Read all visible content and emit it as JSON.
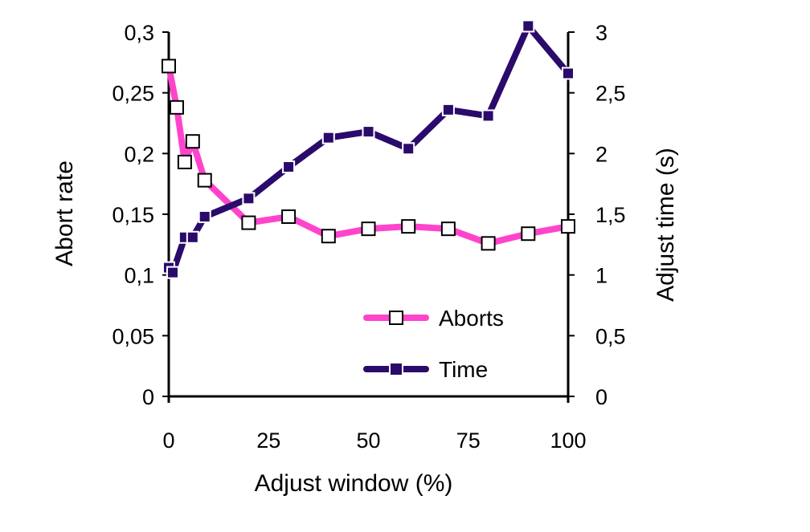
{
  "chart_data": {
    "type": "line",
    "title": "",
    "xlabel": "Adjust window (%)",
    "ylabel_left": "Abort rate",
    "ylabel_right": "Adjust time (s)",
    "xlim": [
      0,
      100
    ],
    "ylim_left": [
      0,
      0.3
    ],
    "ylim_right": [
      0,
      3
    ],
    "x_ticks": [
      "0",
      "25",
      "50",
      "75",
      "100"
    ],
    "y_left_ticks": [
      "0",
      "0,05",
      "0,1",
      "0,15",
      "0,2",
      "0,25",
      "0,3"
    ],
    "y_right_ticks": [
      "0",
      "0,5",
      "1",
      "1,5",
      "2",
      "2,5",
      "3"
    ],
    "grid": false,
    "legend_position": "bottom-right",
    "series": [
      {
        "name": "Aborts",
        "axis": "left",
        "color": "#ff44cc",
        "marker": "hollow-square",
        "x": [
          0,
          2,
          4,
          6,
          9,
          20,
          30,
          40,
          50,
          60,
          70,
          80,
          90,
          100
        ],
        "y": [
          0.272,
          0.238,
          0.193,
          0.21,
          0.178,
          0.143,
          0.148,
          0.132,
          0.138,
          0.14,
          0.138,
          0.126,
          0.134,
          0.14
        ]
      },
      {
        "name": "Time",
        "axis": "right",
        "color": "#2a0a6b",
        "marker": "filled-square",
        "x": [
          0,
          1,
          4,
          6,
          9,
          20,
          30,
          40,
          50,
          60,
          70,
          80,
          90,
          100
        ],
        "y": [
          1.06,
          1.02,
          1.31,
          1.31,
          1.48,
          1.63,
          1.89,
          2.13,
          2.18,
          2.04,
          2.36,
          2.31,
          3.05,
          2.66
        ]
      }
    ]
  }
}
